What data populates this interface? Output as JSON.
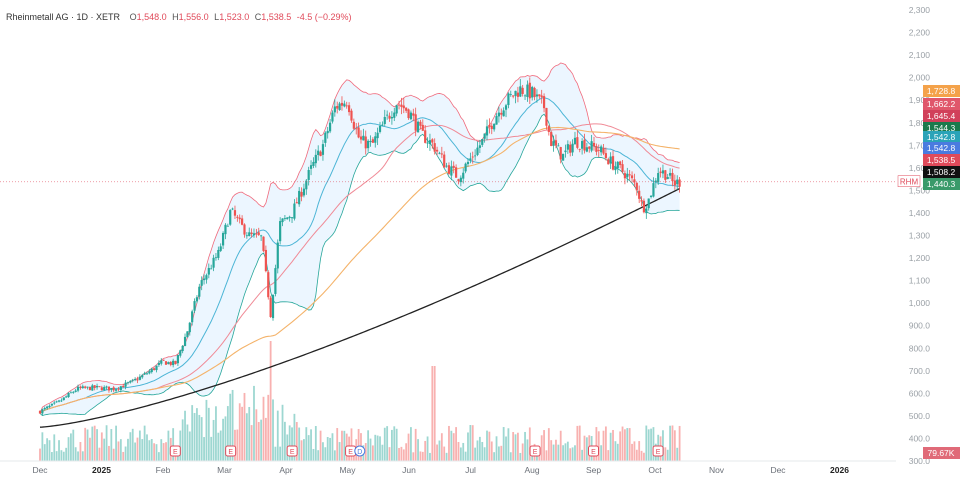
{
  "legend": {
    "symbol": "Rheinmetall AG · 1D · XETR",
    "o_label": "O",
    "o": "1,548.0",
    "h_label": "H",
    "h": "1,556.0",
    "l_label": "L",
    "l": "1,523.0",
    "c_label": "C",
    "c": "1,538.5",
    "change": "-4.5 (−0.29%)"
  },
  "ticker_tag": "RHM",
  "colors": {
    "up": "#26a69a",
    "down": "#ef5350",
    "bb_line": "#f06a7c",
    "bb_fill": "#dcefff",
    "sma20": "#4cb5d6",
    "sma50": "#f08a96",
    "sma100": "#f4b36a",
    "sma200": "#222222"
  },
  "chart_data": {
    "type": "candlestick",
    "ylim": [
      300,
      2300
    ],
    "y_ticks": [
      "2,300",
      "2,200",
      "2,100",
      "2,000",
      "1,900",
      "1,800",
      "1,700",
      "1,600",
      "1,500",
      "1,400",
      "1,300",
      "1,200",
      "1,100",
      "1,000",
      "900.0",
      "800.0",
      "700.0",
      "600.0",
      "500.0",
      "400.0",
      "300.0"
    ],
    "x_labels": [
      {
        "label": "Dec",
        "month_index": 0
      },
      {
        "label": "2025",
        "month_index": 1,
        "bold": true
      },
      {
        "label": "Feb",
        "month_index": 2
      },
      {
        "label": "Mar",
        "month_index": 3
      },
      {
        "label": "Apr",
        "month_index": 4
      },
      {
        "label": "May",
        "month_index": 5
      },
      {
        "label": "Jun",
        "month_index": 6
      },
      {
        "label": "Jul",
        "month_index": 7
      },
      {
        "label": "Aug",
        "month_index": 8
      },
      {
        "label": "Sep",
        "month_index": 9
      },
      {
        "label": "Oct",
        "month_index": 10
      },
      {
        "label": "Nov",
        "month_index": 11
      },
      {
        "label": "Dec",
        "month_index": 12
      },
      {
        "label": "2026",
        "month_index": 13,
        "bold": true
      }
    ],
    "price_anchors": [
      [
        0,
        520
      ],
      [
        0.3,
        560
      ],
      [
        0.6,
        620
      ],
      [
        0.9,
        625
      ],
      [
        1.2,
        620
      ],
      [
        1.5,
        650
      ],
      [
        1.8,
        700
      ],
      [
        2.0,
        740
      ],
      [
        2.2,
        730
      ],
      [
        2.4,
        880
      ],
      [
        2.6,
        1080
      ],
      [
        2.9,
        1220
      ],
      [
        3.1,
        1410
      ],
      [
        3.25,
        1350
      ],
      [
        3.4,
        1300
      ],
      [
        3.6,
        1290
      ],
      [
        3.75,
        950
      ],
      [
        3.9,
        1350
      ],
      [
        4.1,
        1400
      ],
      [
        4.4,
        1590
      ],
      [
        4.6,
        1700
      ],
      [
        4.8,
        1870
      ],
      [
        5.0,
        1900
      ],
      [
        5.1,
        1800
      ],
      [
        5.2,
        1720
      ],
      [
        5.4,
        1700
      ],
      [
        5.6,
        1800
      ],
      [
        5.8,
        1890
      ],
      [
        6.0,
        1850
      ],
      [
        6.2,
        1750
      ],
      [
        6.4,
        1700
      ],
      [
        6.6,
        1610
      ],
      [
        6.8,
        1560
      ],
      [
        7.0,
        1640
      ],
      [
        7.2,
        1720
      ],
      [
        7.4,
        1830
      ],
      [
        7.6,
        1900
      ],
      [
        7.8,
        1950
      ],
      [
        8.0,
        1930
      ],
      [
        8.2,
        1870
      ],
      [
        8.3,
        1720
      ],
      [
        8.5,
        1650
      ],
      [
        8.7,
        1720
      ],
      [
        8.9,
        1700
      ],
      [
        9.1,
        1680
      ],
      [
        9.3,
        1620
      ],
      [
        9.5,
        1580
      ],
      [
        9.7,
        1520
      ],
      [
        9.8,
        1420
      ],
      [
        9.9,
        1460
      ],
      [
        10.05,
        1590
      ],
      [
        10.2,
        1570
      ],
      [
        10.3,
        1530
      ],
      [
        10.4,
        1538
      ]
    ],
    "reference_levels": [
      {
        "value": 1728.8,
        "label": "1,728.8",
        "color": "#f4a24a"
      },
      {
        "value": 1662.2,
        "label": "1,662.2",
        "color": "#e0576b"
      },
      {
        "value": 1645.4,
        "label": "1,645.4",
        "color": "#d1405a"
      },
      {
        "value": 1544.3,
        "label": "1,544.3",
        "color": "#1a7a4c"
      },
      {
        "value": 1542.8,
        "label": "1,542.8",
        "color": "#2aa3b8"
      },
      {
        "value": 1542.8,
        "label": "1,542.8",
        "color": "#4a7be0"
      },
      {
        "value": 1538.5,
        "label": "1,538.5",
        "color": "#e04a5a"
      },
      {
        "value": 1508.2,
        "label": "1,508.2",
        "color": "#111111"
      },
      {
        "value": 1440.3,
        "label": "1,440.3",
        "color": "#3a9a6a"
      }
    ],
    "volume_tag": "79.67K",
    "event_markers": [
      {
        "label": "E",
        "month_index": 2.2
      },
      {
        "label": "E",
        "month_index": 3.1
      },
      {
        "label": "E",
        "month_index": 4.1
      },
      {
        "label": "E",
        "month_index": 5.05
      },
      {
        "label": "D",
        "month_index": 5.2
      },
      {
        "label": "E",
        "month_index": 8.05
      },
      {
        "label": "E",
        "month_index": 9.0
      },
      {
        "label": "E",
        "month_index": 10.05
      }
    ]
  }
}
